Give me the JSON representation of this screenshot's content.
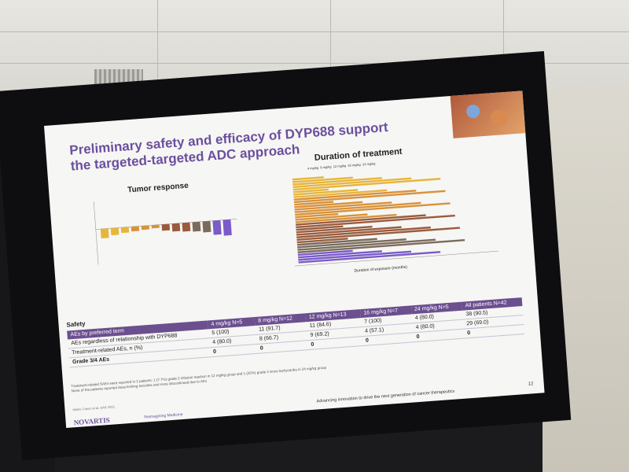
{
  "slide": {
    "title_line1": "Preliminary safety and efficacy of DYP688 support",
    "title_line2": "the targeted-targeted ADC approach",
    "tumor_response_title": "Tumor response",
    "duration_title": "Duration of treatment",
    "duration_xlabel": "Duration of exposure (months)",
    "duration_legend": [
      "4 mg/kg",
      "8 mg/kg",
      "12 mg/kg",
      "16 mg/kg",
      "24 mg/kg"
    ],
    "safety_label": "Safety",
    "table": {
      "headers": [
        "AEs by preferred term",
        "4 mg/kg\nN=5",
        "8 mg/kg\nN=12",
        "12 mg/kg\nN=13",
        "16 mg/kg\nN=7",
        "24 mg/kg\nN=5",
        "All patients\nN=42"
      ],
      "rows": [
        [
          "AEs regardless of relationship with DYP688",
          "5 (100)",
          "11 (91.7)",
          "11 (84.6)",
          "7 (100)",
          "4 (80.0)",
          "38 (90.5)"
        ],
        [
          "Treatment-related AEs, n (%)",
          "4 (80.0)",
          "8 (66.7)",
          "9 (69.2)",
          "4 (57.1)",
          "4 (80.0)",
          "29 (69.0)"
        ],
        [
          "Grade 3/4 AEs",
          "0",
          "0",
          "0",
          "0",
          "0",
          "0"
        ]
      ]
    },
    "footnote_1": "Treatment-related SAEs were reported in 2 patients: 1 (7.7%) grade 2 infusion reaction in 12 mg/kg group and 1 (20%) grade 2 sinus tachycardia in 24 mg/kg group",
    "footnote_2": "None of the patients reported dose-limiting toxicities and none discontinued due to AEs",
    "citation": "Maitre Carino et al, SAR 2023.",
    "brand": "NOVARTIS",
    "brand_tagline": "Reimagining Medicine",
    "footer": "Advancing innovation to drive the next generation of cancer therapeutics",
    "page_number": "12"
  },
  "colors": {
    "accent": "#6b4f9e",
    "dose_4": "#e8b53b",
    "dose_8": "#d9923a",
    "dose_12": "#9a5b3c",
    "dose_16": "#7a6b5c",
    "dose_24": "#7a5bc9"
  }
}
